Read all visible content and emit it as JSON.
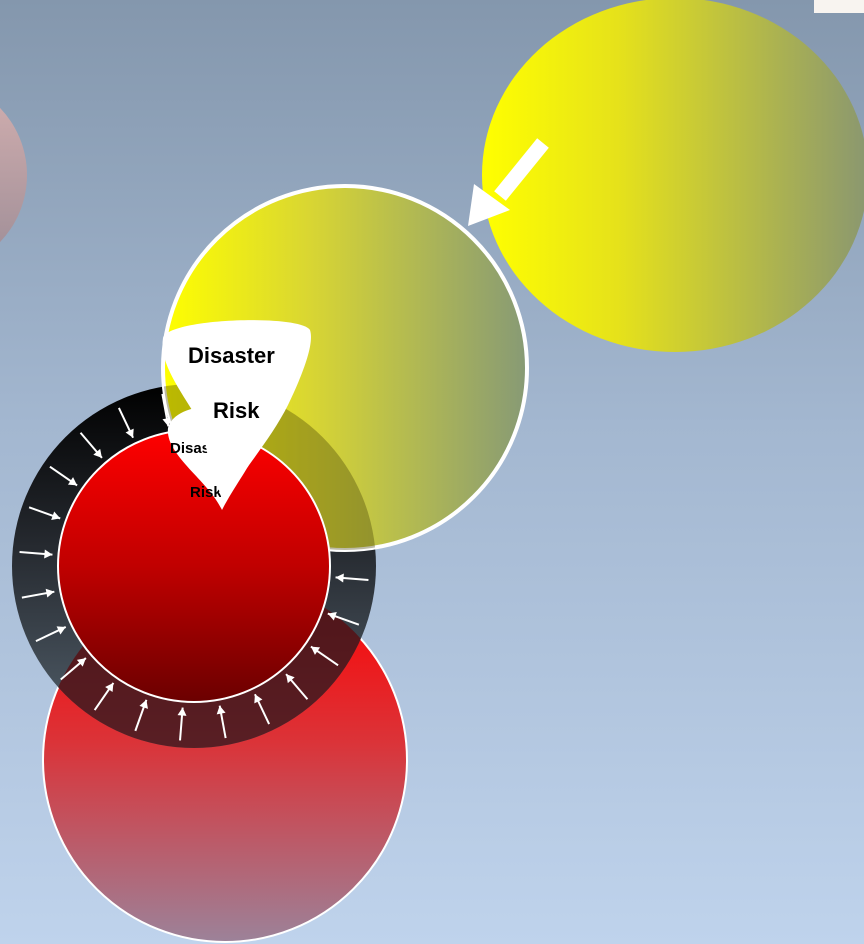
{
  "diagram": {
    "labels": {
      "outer_line1": "Disaster",
      "outer_line2": "Risk",
      "inner_line1": "Disaster",
      "inner_line2": "Risk"
    },
    "colors": {
      "background_top": "#8497ad",
      "background_bottom": "#bfd3ec",
      "yellow": "#ffff00",
      "olive": "#8a9770",
      "red": "#ff0000",
      "dark_red": "#7a0000",
      "ring_dark": "#0a0a0a",
      "ring_light": "#4f5d6b",
      "pink": "#c9a8ad"
    }
  }
}
